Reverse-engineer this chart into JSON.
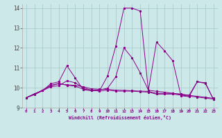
{
  "xlabel": "Windchill (Refroidissement éolien,°C)",
  "ylabel": "",
  "xlim": [
    -0.5,
    23.5
  ],
  "ylim": [
    9.0,
    14.2
  ],
  "yticks": [
    9,
    10,
    11,
    12,
    13,
    14
  ],
  "xticks": [
    0,
    1,
    2,
    3,
    4,
    5,
    6,
    7,
    8,
    9,
    10,
    11,
    12,
    13,
    14,
    15,
    16,
    17,
    18,
    19,
    20,
    21,
    22,
    23
  ],
  "background_color": "#cce8e8",
  "line_color": "#880088",
  "grid_color": "#aacccc",
  "lines": [
    [
      9.5,
      9.7,
      9.85,
      10.2,
      10.3,
      11.1,
      10.5,
      9.9,
      9.85,
      9.85,
      10.6,
      12.1,
      14.0,
      14.0,
      13.85,
      9.85,
      12.3,
      11.85,
      11.35,
      9.6,
      9.55,
      10.3,
      10.25,
      9.4
    ],
    [
      9.5,
      9.65,
      9.85,
      10.05,
      10.1,
      10.35,
      10.25,
      10.0,
      9.88,
      9.88,
      9.98,
      10.55,
      12.0,
      11.5,
      10.75,
      9.88,
      9.82,
      9.78,
      9.72,
      9.68,
      9.62,
      10.3,
      10.22,
      9.42
    ],
    [
      9.5,
      9.68,
      9.88,
      10.1,
      10.2,
      10.15,
      10.12,
      10.05,
      9.95,
      9.92,
      9.92,
      9.88,
      9.87,
      9.85,
      9.83,
      9.82,
      9.72,
      9.72,
      9.72,
      9.67,
      9.62,
      9.57,
      9.52,
      9.47
    ],
    [
      9.5,
      9.68,
      9.88,
      10.12,
      10.22,
      10.12,
      10.08,
      9.93,
      9.88,
      9.83,
      9.88,
      9.83,
      9.83,
      9.83,
      9.8,
      9.78,
      9.68,
      9.68,
      9.68,
      9.63,
      9.58,
      9.53,
      9.48,
      9.43
    ]
  ]
}
